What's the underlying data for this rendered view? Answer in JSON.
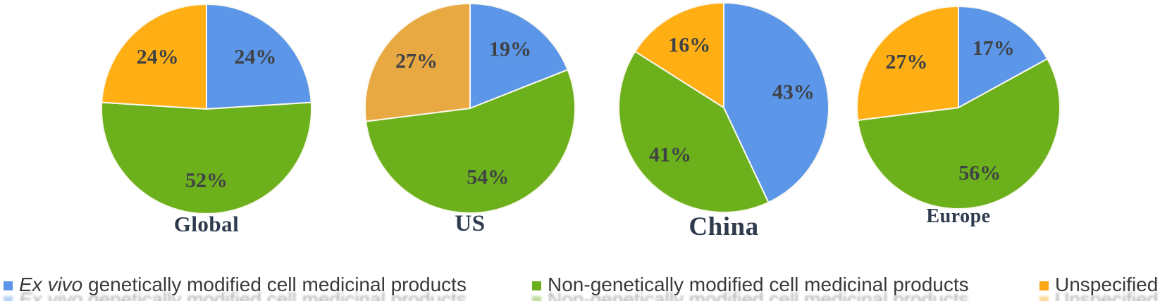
{
  "chart_data": {
    "type": "pie",
    "description": "Four pie charts comparing composition of cell medicinal products by region; slices start at 12 o'clock and run clockwise",
    "legend_position": "bottom",
    "charts": [
      {
        "title": "Global",
        "slices": [
          {
            "name": "Ex vivo genetically modified cell medicinal products",
            "value": 24,
            "label": "24%",
            "color": "#5b96e8"
          },
          {
            "name": "Non-genetically modified cell medicinal products",
            "value": 52,
            "label": "52%",
            "color": "#6cb01c"
          },
          {
            "name": "Unspecified",
            "value": 24,
            "label": "24%",
            "color": "#ffaf14"
          }
        ]
      },
      {
        "title": "US",
        "slices": [
          {
            "name": "Ex vivo genetically modified cell medicinal products",
            "value": 19,
            "label": "19%",
            "color": "#5b96e8"
          },
          {
            "name": "Non-genetically modified cell medicinal products",
            "value": 54,
            "label": "54%",
            "color": "#6cb01c"
          },
          {
            "name": "Unspecified",
            "value": 27,
            "label": "27%",
            "color": "#e8a943"
          }
        ]
      },
      {
        "title": "China",
        "slices": [
          {
            "name": "Ex vivo genetically modified cell medicinal products",
            "value": 43,
            "label": "43%",
            "color": "#5b96e8"
          },
          {
            "name": "Non-genetically modified cell medicinal products",
            "value": 41,
            "label": "41%",
            "color": "#6cb01c"
          },
          {
            "name": "Unspecified",
            "value": 16,
            "label": "16%",
            "color": "#ffaf14"
          }
        ]
      },
      {
        "title": "Europe",
        "slices": [
          {
            "name": "Ex vivo genetically modified cell medicinal products",
            "value": 17,
            "label": "17%",
            "color": "#5b96e8"
          },
          {
            "name": "Non-genetically modified cell medicinal products",
            "value": 56,
            "label": "56%",
            "color": "#6cb01c"
          },
          {
            "name": "Unspecified",
            "value": 27,
            "label": "27%",
            "color": "#ffaf14"
          }
        ]
      }
    ]
  },
  "legend": {
    "items": [
      {
        "label_italic": "Ex vivo",
        "label_rest": " genetically modified cell medicinal products",
        "color": "#5b96e8"
      },
      {
        "label": "Non-genetically modified cell medicinal products",
        "color": "#6bae1e"
      },
      {
        "label": "Unspecified",
        "color": "#fba615"
      }
    ]
  },
  "style": {
    "slice_separator_color": "#faf8ef",
    "percent_label_color": "#3f4245",
    "title_color": "#2e3a4e"
  }
}
